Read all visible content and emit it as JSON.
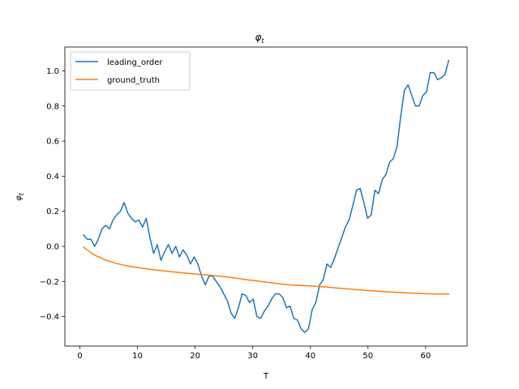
{
  "chart_data": {
    "type": "line",
    "title": "φ",
    "title_subscript": "t",
    "xlabel": "T",
    "ylabel": "φ",
    "ylabel_subscript": "t",
    "xlim": [
      -2.6,
      67.2
    ],
    "ylim": [
      -0.568,
      1.136
    ],
    "xticks": [
      0,
      10,
      20,
      30,
      40,
      50,
      60
    ],
    "yticks": [
      -0.4,
      -0.2,
      0.0,
      0.2,
      0.4,
      0.6,
      0.8,
      1.0
    ],
    "ytick_labels": [
      "−0.4",
      "−0.2",
      "0.0",
      "0.2",
      "0.4",
      "0.6",
      "0.8",
      "1.0"
    ],
    "grid": false,
    "legend_position": "upper left",
    "series": [
      {
        "name": "leading_order",
        "color": "#1f77b4",
        "x": [
          0.64,
          1.28,
          1.92,
          2.56,
          3.2,
          3.84,
          4.48,
          5.12,
          5.76,
          6.4,
          7.04,
          7.68,
          8.32,
          8.96,
          9.6,
          10.24,
          10.88,
          11.52,
          12.16,
          12.8,
          13.44,
          14.08,
          14.72,
          15.36,
          16.0,
          16.64,
          17.28,
          17.92,
          18.56,
          19.2,
          19.84,
          20.48,
          21.12,
          21.76,
          22.4,
          23.04,
          23.68,
          24.32,
          24.96,
          25.6,
          26.24,
          26.88,
          27.52,
          28.16,
          28.8,
          29.44,
          30.08,
          30.72,
          31.36,
          32.0,
          32.64,
          33.28,
          33.92,
          34.56,
          35.2,
          35.84,
          36.48,
          37.12,
          37.76,
          38.4,
          39.04,
          39.68,
          40.32,
          40.96,
          41.6,
          42.24,
          42.88,
          43.52,
          44.16,
          44.8,
          45.44,
          46.08,
          46.72,
          47.36,
          48.0,
          48.64,
          49.28,
          49.92,
          50.56,
          51.2,
          51.84,
          52.48,
          53.12,
          53.76,
          54.4,
          55.04,
          55.68,
          56.32,
          56.96,
          57.6,
          58.24,
          58.88,
          59.52,
          60.16,
          60.8,
          61.44,
          62.08,
          62.72,
          63.36,
          64.0
        ],
        "y": [
          0.065,
          0.04,
          0.04,
          0.0,
          0.04,
          0.1,
          0.12,
          0.1,
          0.15,
          0.18,
          0.2,
          0.25,
          0.19,
          0.16,
          0.14,
          0.15,
          0.11,
          0.16,
          0.05,
          -0.04,
          0.01,
          -0.08,
          -0.03,
          0.01,
          -0.04,
          0.0,
          -0.06,
          -0.02,
          -0.05,
          -0.1,
          -0.06,
          -0.1,
          -0.17,
          -0.22,
          -0.17,
          -0.17,
          -0.2,
          -0.23,
          -0.27,
          -0.31,
          -0.38,
          -0.41,
          -0.35,
          -0.27,
          -0.28,
          -0.32,
          -0.3,
          -0.4,
          -0.41,
          -0.37,
          -0.34,
          -0.3,
          -0.27,
          -0.27,
          -0.29,
          -0.35,
          -0.34,
          -0.41,
          -0.42,
          -0.47,
          -0.49,
          -0.47,
          -0.36,
          -0.32,
          -0.22,
          -0.19,
          -0.1,
          -0.12,
          -0.07,
          -0.01,
          0.05,
          0.11,
          0.15,
          0.23,
          0.32,
          0.33,
          0.25,
          0.16,
          0.18,
          0.32,
          0.3,
          0.38,
          0.41,
          0.48,
          0.5,
          0.57,
          0.74,
          0.89,
          0.92,
          0.86,
          0.8,
          0.8,
          0.86,
          0.88,
          0.99,
          0.99,
          0.95,
          0.96,
          0.98,
          1.06
        ]
      },
      {
        "name": "ground_truth",
        "color": "#ff7f0e",
        "x": [
          0.64,
          2.56,
          4.48,
          6.4,
          8.32,
          10.24,
          12.16,
          14.08,
          16.0,
          17.92,
          19.84,
          21.76,
          23.68,
          25.6,
          27.52,
          29.44,
          31.36,
          33.28,
          35.2,
          37.12,
          39.04,
          40.96,
          42.88,
          44.8,
          46.72,
          48.64,
          50.56,
          52.48,
          54.4,
          56.32,
          58.24,
          60.16,
          62.08,
          64.0
        ],
        "y": [
          -0.005,
          -0.05,
          -0.078,
          -0.098,
          -0.112,
          -0.122,
          -0.13,
          -0.138,
          -0.145,
          -0.151,
          -0.157,
          -0.162,
          -0.168,
          -0.175,
          -0.183,
          -0.192,
          -0.2,
          -0.208,
          -0.215,
          -0.221,
          -0.224,
          -0.227,
          -0.232,
          -0.238,
          -0.243,
          -0.248,
          -0.253,
          -0.257,
          -0.261,
          -0.264,
          -0.267,
          -0.27,
          -0.271,
          -0.272
        ]
      }
    ]
  }
}
